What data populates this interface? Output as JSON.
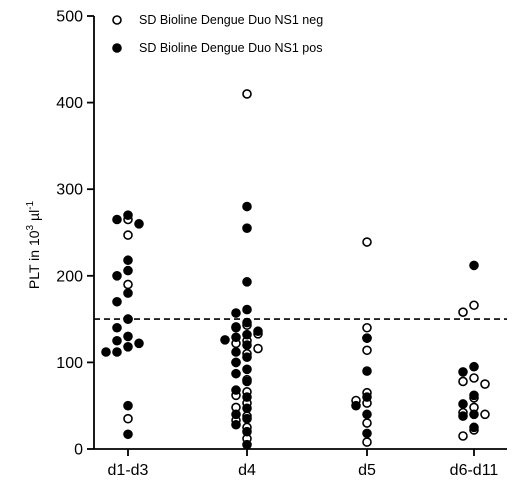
{
  "chart_data": {
    "type": "scatter",
    "title": "",
    "xlabel": "",
    "ylabel": "PLT in 10³ µl⁻¹",
    "ylabel_parts": {
      "base": "PLT in 10",
      "exp1": "3",
      "mid": " µl",
      "exp2": "-1"
    },
    "ylim": [
      0,
      500
    ],
    "yticks": [
      "0",
      "100",
      "200",
      "300",
      "400",
      "500"
    ],
    "categories": [
      "d1-d3",
      "d4",
      "d5",
      "d6-d11"
    ],
    "legend_position": "top-left",
    "reference_line": {
      "y": 150,
      "style": "dashed"
    },
    "series": [
      {
        "name": "SD Bioline Dengue Duo NS1 neg",
        "marker": "open-circle",
        "points": [
          [
            0,
            265
          ],
          [
            0,
            247
          ],
          [
            0,
            190
          ],
          [
            0,
            150
          ],
          [
            0,
            35
          ],
          [
            1,
            410
          ],
          [
            1,
            143
          ],
          [
            1,
            140
          ],
          [
            1,
            133
          ],
          [
            1,
            125
          ],
          [
            1,
            122
          ],
          [
            1,
            116
          ],
          [
            1,
            110
          ],
          [
            1,
            100
          ],
          [
            1,
            80
          ],
          [
            1,
            66
          ],
          [
            1,
            62
          ],
          [
            1,
            53
          ],
          [
            1,
            48
          ],
          [
            1,
            38
          ],
          [
            1,
            33
          ],
          [
            1,
            25
          ],
          [
            1,
            12
          ],
          [
            2,
            239
          ],
          [
            2,
            140
          ],
          [
            2,
            128
          ],
          [
            2,
            114
          ],
          [
            2,
            65
          ],
          [
            2,
            56
          ],
          [
            2,
            53
          ],
          [
            2,
            30
          ],
          [
            2,
            8
          ],
          [
            3,
            166
          ],
          [
            3,
            158
          ],
          [
            3,
            82
          ],
          [
            3,
            78
          ],
          [
            3,
            75
          ],
          [
            3,
            59
          ],
          [
            3,
            48
          ],
          [
            3,
            42
          ],
          [
            3,
            40
          ],
          [
            3,
            22
          ],
          [
            3,
            15
          ]
        ]
      },
      {
        "name": "SD Bioline Dengue Duo NS1 pos",
        "marker": "filled-circle",
        "points": [
          [
            0,
            270
          ],
          [
            0,
            265
          ],
          [
            0,
            260
          ],
          [
            0,
            218
          ],
          [
            0,
            206
          ],
          [
            0,
            200
          ],
          [
            0,
            180
          ],
          [
            0,
            170
          ],
          [
            0,
            150
          ],
          [
            0,
            140
          ],
          [
            0,
            130
          ],
          [
            0,
            125
          ],
          [
            0,
            122
          ],
          [
            0,
            118
          ],
          [
            0,
            112
          ],
          [
            0,
            112
          ],
          [
            0,
            50
          ],
          [
            0,
            17
          ],
          [
            1,
            280
          ],
          [
            1,
            255
          ],
          [
            1,
            193
          ],
          [
            1,
            161
          ],
          [
            1,
            157
          ],
          [
            1,
            146
          ],
          [
            1,
            141
          ],
          [
            1,
            136
          ],
          [
            1,
            132
          ],
          [
            1,
            129
          ],
          [
            1,
            126
          ],
          [
            1,
            120
          ],
          [
            1,
            112
          ],
          [
            1,
            106
          ],
          [
            1,
            100
          ],
          [
            1,
            92
          ],
          [
            1,
            87
          ],
          [
            1,
            78
          ],
          [
            1,
            68
          ],
          [
            1,
            60
          ],
          [
            1,
            47
          ],
          [
            1,
            40
          ],
          [
            1,
            35
          ],
          [
            1,
            28
          ],
          [
            1,
            20
          ],
          [
            1,
            5
          ],
          [
            2,
            128
          ],
          [
            2,
            90
          ],
          [
            2,
            60
          ],
          [
            2,
            50
          ],
          [
            2,
            40
          ],
          [
            2,
            18
          ],
          [
            3,
            212
          ],
          [
            3,
            95
          ],
          [
            3,
            89
          ],
          [
            3,
            62
          ],
          [
            3,
            52
          ],
          [
            3,
            40
          ],
          [
            3,
            38
          ],
          [
            3,
            25
          ]
        ]
      }
    ]
  }
}
